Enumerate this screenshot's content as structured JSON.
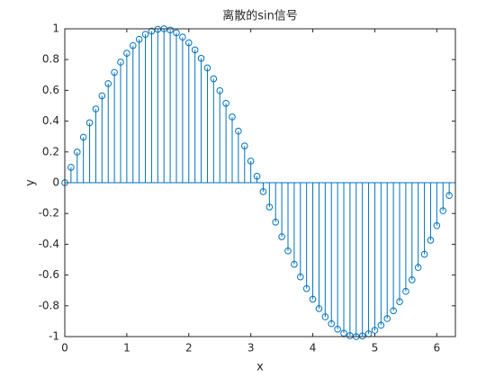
{
  "chart_data": {
    "type": "stem",
    "title": "离散的sin信号",
    "x_label": "x",
    "y_label": "y",
    "x": [
      0,
      0.1,
      0.2,
      0.3,
      0.4,
      0.5,
      0.6,
      0.7,
      0.8,
      0.9,
      1.0,
      1.1,
      1.2,
      1.3,
      1.4,
      1.5,
      1.6,
      1.7,
      1.8,
      1.9,
      2.0,
      2.1,
      2.2,
      2.3,
      2.4,
      2.5,
      2.6,
      2.7,
      2.8,
      2.9,
      3.0,
      3.1,
      3.2,
      3.3,
      3.4,
      3.5,
      3.6,
      3.7,
      3.8,
      3.9,
      4.0,
      4.1,
      4.2,
      4.3,
      4.4,
      4.5,
      4.6,
      4.7,
      4.8,
      4.9,
      5.0,
      5.1,
      5.2,
      5.3,
      5.4,
      5.5,
      5.6,
      5.7,
      5.8,
      5.9,
      6.0,
      6.1,
      6.2
    ],
    "values": [
      0,
      0.1,
      0.199,
      0.296,
      0.389,
      0.479,
      0.565,
      0.644,
      0.717,
      0.783,
      0.841,
      0.891,
      0.932,
      0.964,
      0.985,
      0.997,
      1.0,
      0.992,
      0.974,
      0.946,
      0.909,
      0.863,
      0.808,
      0.746,
      0.675,
      0.598,
      0.516,
      0.427,
      0.335,
      0.239,
      0.141,
      0.042,
      -0.058,
      -0.158,
      -0.256,
      -0.351,
      -0.443,
      -0.53,
      -0.612,
      -0.688,
      -0.757,
      -0.818,
      -0.872,
      -0.916,
      -0.952,
      -0.978,
      -0.994,
      -1.0,
      -0.996,
      -0.982,
      -0.959,
      -0.926,
      -0.883,
      -0.832,
      -0.773,
      -0.706,
      -0.631,
      -0.551,
      -0.465,
      -0.374,
      -0.279,
      -0.182,
      -0.083
    ],
    "color": "#0072bd",
    "xlim": [
      0,
      6.3
    ],
    "xticks": [
      0,
      1,
      2,
      3,
      4,
      5,
      6
    ],
    "ylim": [
      -1,
      1
    ],
    "yticks": [
      -1,
      -0.8,
      -0.6,
      -0.4,
      -0.2,
      0,
      0.2,
      0.4,
      0.6,
      0.8,
      1
    ]
  }
}
